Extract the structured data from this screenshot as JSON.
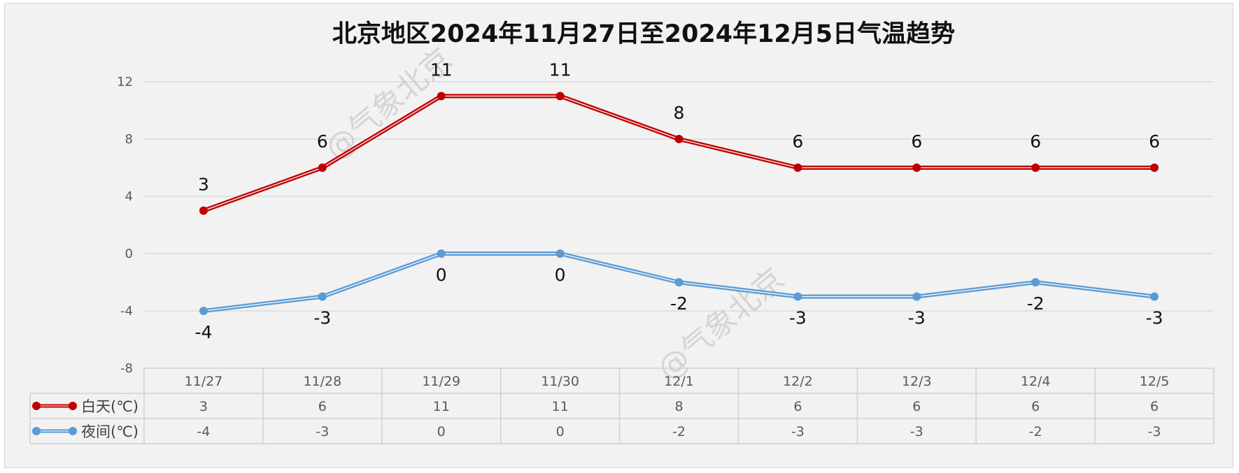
{
  "colors": {
    "day": "#c00000",
    "night": "#5b9bd5",
    "grid": "#d9d9d9",
    "background": "#f2f2f2",
    "table_border": "#d0d0d0"
  },
  "watermark": "@气象北京",
  "chart_data": {
    "type": "line",
    "title": "北京地区2024年11月27日至2024年12月5日气温趋势",
    "categories": [
      "11/27",
      "11/28",
      "11/29",
      "11/30",
      "12/1",
      "12/2",
      "12/3",
      "12/4",
      "12/5"
    ],
    "series": [
      {
        "name": "白天(℃)",
        "values": [
          3,
          6,
          11,
          11,
          8,
          6,
          6,
          6,
          6
        ],
        "label_position": "above"
      },
      {
        "name": "夜间(℃)",
        "values": [
          -4,
          -3,
          0,
          0,
          -2,
          -3,
          -3,
          -2,
          -3
        ],
        "label_position": "below"
      }
    ],
    "ylim": [
      -8,
      12
    ],
    "yticks": [
      -8,
      -4,
      0,
      4,
      8,
      12
    ],
    "grid": true,
    "legend": "data-table-left",
    "data_labels": true,
    "data_table": true
  }
}
